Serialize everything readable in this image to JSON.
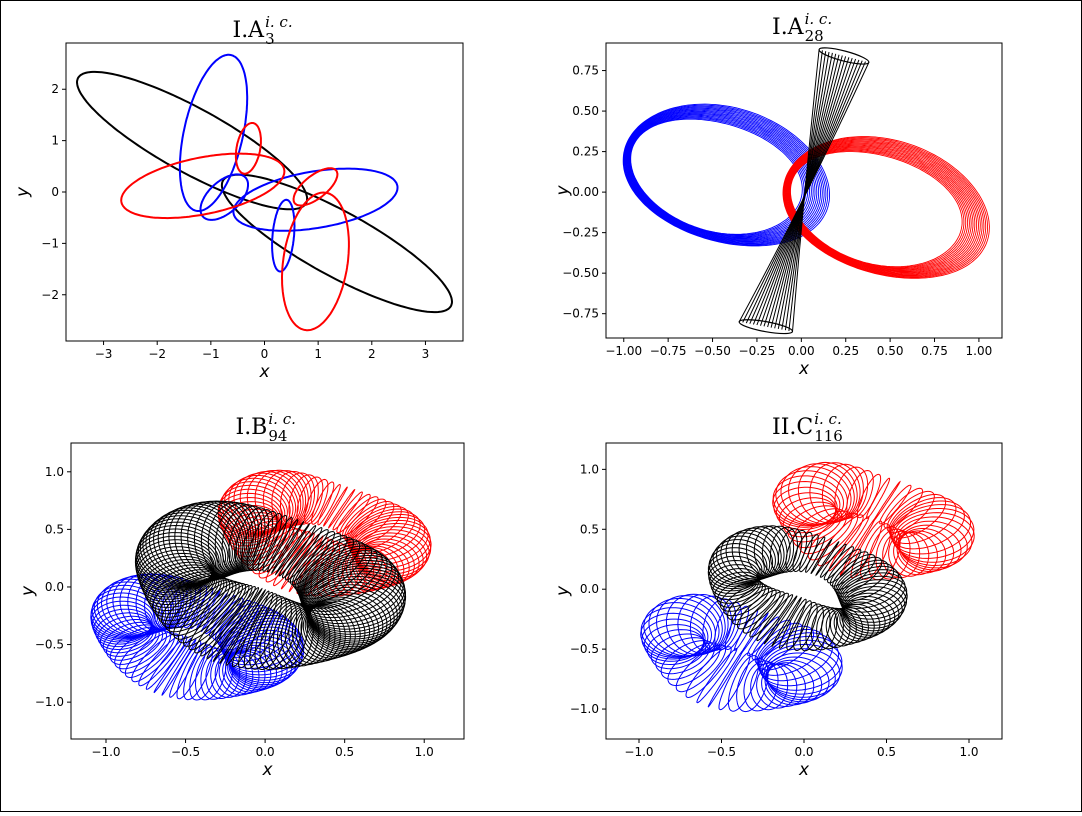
{
  "chart_data": [
    {
      "type": "line",
      "title": "I.A",
      "title_sup": "i. c.",
      "title_sub": "3",
      "xlabel": "x",
      "ylabel": "y",
      "xlim": [
        -3.7,
        3.7
      ],
      "ylim": [
        -2.9,
        2.9
      ],
      "xticks": [
        -3,
        -2,
        -1,
        0,
        1,
        2,
        3
      ],
      "yticks": [
        -2,
        -1,
        0,
        1,
        2
      ],
      "grid": false,
      "series_colors": [
        "#ff0000",
        "#0000ff",
        "#000000"
      ],
      "curves": [
        {
          "color": "#000000",
          "kind": "ellipse",
          "center": [
            -1.35,
            1.0
          ],
          "rx": 2.45,
          "ry": 0.62,
          "angle_deg": -30
        },
        {
          "color": "#000000",
          "kind": "ellipse",
          "center": [
            1.35,
            -1.0
          ],
          "rx": 2.45,
          "ry": 0.62,
          "angle_deg": -30
        },
        {
          "color": "#0000ff",
          "kind": "ellipse",
          "center": [
            -0.95,
            1.15
          ],
          "rx": 1.55,
          "ry": 0.55,
          "angle_deg": 78
        },
        {
          "color": "#0000ff",
          "kind": "ellipse",
          "center": [
            0.95,
            -0.15
          ],
          "rx": 1.55,
          "ry": 0.55,
          "angle_deg": 10
        },
        {
          "color": "#0000ff",
          "kind": "ellipse",
          "center": [
            -0.75,
            -0.1
          ],
          "rx": 0.55,
          "ry": 0.3,
          "angle_deg": 45
        },
        {
          "color": "#0000ff",
          "kind": "ellipse",
          "center": [
            0.35,
            -0.85
          ],
          "rx": 0.7,
          "ry": 0.2,
          "angle_deg": 85
        },
        {
          "color": "#ff0000",
          "kind": "ellipse",
          "center": [
            -1.15,
            0.12
          ],
          "rx": 1.55,
          "ry": 0.55,
          "angle_deg": 12
        },
        {
          "color": "#ff0000",
          "kind": "ellipse",
          "center": [
            0.95,
            -1.35
          ],
          "rx": 1.35,
          "ry": 0.6,
          "angle_deg": 82
        },
        {
          "color": "#ff0000",
          "kind": "ellipse",
          "center": [
            -0.3,
            0.85
          ],
          "rx": 0.5,
          "ry": 0.22,
          "angle_deg": 80
        },
        {
          "color": "#ff0000",
          "kind": "ellipse",
          "center": [
            0.95,
            0.1
          ],
          "rx": 0.5,
          "ry": 0.22,
          "angle_deg": 40
        }
      ]
    },
    {
      "type": "line",
      "title": "I.A",
      "title_sup": "i. c.",
      "title_sub": "28",
      "xlabel": "x",
      "ylabel": "y",
      "xlim": [
        -1.1,
        1.13
      ],
      "ylim": [
        -0.9,
        0.92
      ],
      "xticks": [
        -1.0,
        -0.75,
        -0.5,
        -0.25,
        0.0,
        0.25,
        0.5,
        0.75,
        1.0
      ],
      "xtick_labels": [
        "-1.00",
        "-0.75",
        "-0.50",
        "-0.25",
        "0.00",
        "0.25",
        "0.50",
        "0.75",
        "1.00"
      ],
      "yticks": [
        -0.75,
        -0.5,
        -0.25,
        0.0,
        0.25,
        0.5,
        0.75
      ],
      "ytick_labels": [
        "-0.75",
        "-0.50",
        "-0.25",
        "0.00",
        "0.25",
        "0.50",
        "0.75"
      ],
      "grid": false,
      "bands": [
        {
          "color": "#0000ff",
          "center": [
            -0.45,
            0.1
          ],
          "rx": 0.55,
          "ry": 0.37,
          "angle_deg": -20,
          "spread": 0.1,
          "count": 16
        },
        {
          "color": "#ff0000",
          "center": [
            0.45,
            -0.1
          ],
          "rx": 0.55,
          "ry": 0.37,
          "angle_deg": -20,
          "spread": 0.1,
          "count": 16
        }
      ],
      "hourglass": {
        "color": "#000000",
        "top": [
          [
            0.1,
            0.88
          ],
          [
            0.38,
            0.8
          ]
        ],
        "bottom": [
          [
            -0.35,
            -0.8
          ],
          [
            -0.05,
            -0.86
          ]
        ],
        "waist": [
          [
            0.04,
            0.0
          ],
          [
            0.02,
            0.0
          ]
        ],
        "count": 16
      }
    },
    {
      "type": "line",
      "title": "I.B",
      "title_sup": "i. c.",
      "title_sub": "94",
      "xlabel": "x",
      "ylabel": "y",
      "xlim": [
        -1.22,
        1.25
      ],
      "ylim": [
        -1.32,
        1.25
      ],
      "xticks": [
        -1.0,
        -0.5,
        0.0,
        0.5,
        1.0
      ],
      "xtick_labels": [
        "-1.0",
        "-0.5",
        "0.0",
        "0.5",
        "1.0"
      ],
      "yticks": [
        -1.0,
        -0.5,
        0.0,
        0.5,
        1.0
      ],
      "ytick_labels": [
        "-1.0",
        "-0.5",
        "0.0",
        "0.5",
        "1.0"
      ],
      "grid": false,
      "tori": [
        {
          "color": "#ff0000",
          "center": [
            0.35,
            0.45
          ],
          "R": 0.48,
          "r": 0.25,
          "squash": 0.55,
          "angle_deg": -25,
          "loops": 70
        },
        {
          "color": "#0000ff",
          "center": [
            -0.45,
            -0.45
          ],
          "R": 0.48,
          "r": 0.25,
          "squash": 0.55,
          "angle_deg": -25,
          "loops": 70
        },
        {
          "color": "#000000",
          "center": [
            0.0,
            0.0
          ],
          "R": 0.6,
          "r": 0.32,
          "squash": 0.62,
          "angle_deg": -25,
          "loops": 110
        }
      ]
    },
    {
      "type": "line",
      "title": "II.C",
      "title_sup": "i. c.",
      "title_sub": "116",
      "xlabel": "x",
      "ylabel": "y",
      "xlim": [
        -1.2,
        1.2
      ],
      "ylim": [
        -1.25,
        1.22
      ],
      "xticks": [
        -1.0,
        -0.5,
        0.0,
        0.5,
        1.0
      ],
      "xtick_labels": [
        "-1.0",
        "-0.5",
        "0.0",
        "0.5",
        "1.0"
      ],
      "yticks": [
        -1.0,
        -0.5,
        0.0,
        0.5,
        1.0
      ],
      "ytick_labels": [
        "-1.0",
        "-0.5",
        "0.0",
        "0.5",
        "1.0"
      ],
      "grid": false,
      "tori": [
        {
          "color": "#ff0000",
          "center": [
            0.4,
            0.55
          ],
          "R": 0.42,
          "r": 0.25,
          "squash": 0.5,
          "angle_deg": -25,
          "loops": 45
        },
        {
          "color": "#0000ff",
          "center": [
            -0.4,
            -0.55
          ],
          "R": 0.42,
          "r": 0.25,
          "squash": 0.5,
          "angle_deg": -25,
          "loops": 45
        },
        {
          "color": "#000000",
          "center": [
            0.0,
            0.0
          ],
          "R": 0.45,
          "r": 0.2,
          "squash": 0.65,
          "angle_deg": -25,
          "loops": 70
        }
      ]
    }
  ]
}
